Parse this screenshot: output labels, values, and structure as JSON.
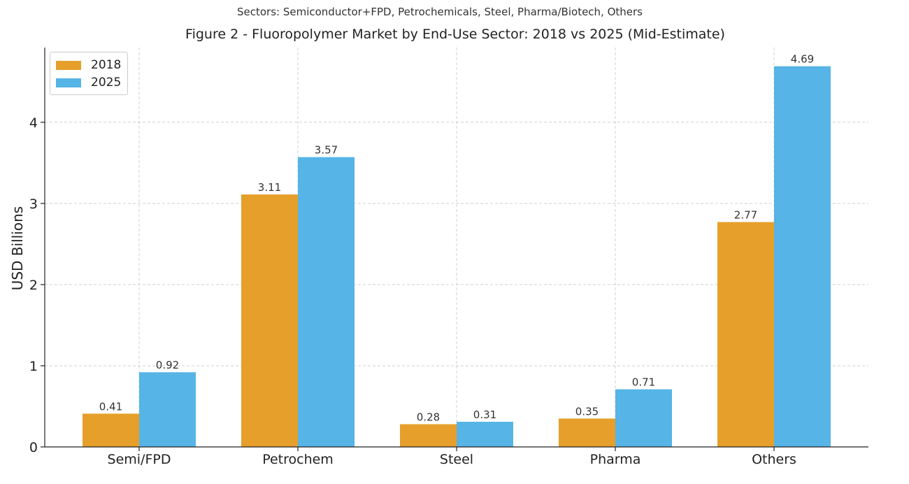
{
  "chart_data": {
    "type": "bar",
    "subtitle": "Sectors: Semiconductor+FPD, Petrochemicals, Steel, Pharma/Biotech, Others",
    "title": "Figure 2 - Fluoropolymer Market by End-Use Sector: 2018 vs 2025 (Mid-Estimate)",
    "xlabel": "",
    "ylabel": "USD Billions",
    "categories": [
      "Semi/FPD",
      "Petrochem",
      "Steel",
      "Pharma",
      "Others"
    ],
    "series": [
      {
        "name": "2018",
        "color": "#E69F2A",
        "values": [
          0.41,
          3.11,
          0.28,
          0.35,
          2.77
        ],
        "labels": [
          "0.41",
          "3.11",
          "0.28",
          "0.35",
          "2.77"
        ]
      },
      {
        "name": "2025",
        "color": "#56B4E6",
        "values": [
          0.92,
          3.57,
          0.31,
          0.71,
          4.69
        ],
        "labels": [
          "0.92",
          "3.57",
          "0.31",
          "0.71",
          "4.69"
        ]
      }
    ],
    "ylim": [
      0,
      4.92
    ],
    "yticks": [
      0,
      1,
      2,
      3,
      4
    ],
    "ytick_labels": [
      "0",
      "1",
      "2",
      "3",
      "4"
    ],
    "grid": true,
    "legend_position": "top-left"
  }
}
